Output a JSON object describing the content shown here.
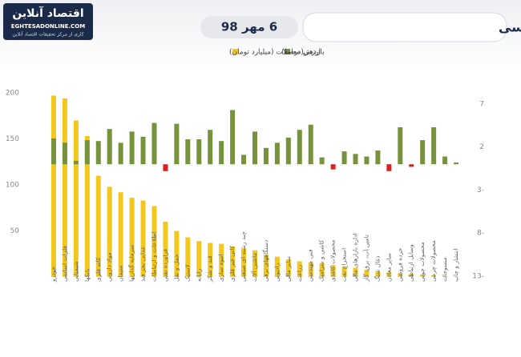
{
  "logo": {
    "name": "اقتصاد آنلاین",
    "site": "EGHTESADONLINE.COM",
    "tagline": "کاری از مرکز تحقیقات اقتصاد آنلاین"
  },
  "chart_data": {
    "type": "bar",
    "title": "بازدهی و ارزش معاملات صنایع بورسی",
    "date": "6 مهر 98",
    "categories": [
      "خودرو",
      "فلزات اساسی",
      "شیمیایی",
      "بانکها",
      "کانه فلزی",
      "مواد دارویی",
      "سیمان",
      "سرمایه گذاریها",
      "غذایی بجز قند",
      "اطلاعات و ارتباطات",
      "فراورده نفتی",
      "حمل و نقل",
      "لاستیک",
      "رایانه",
      "قند و شکر",
      "انبوه سازی",
      "کانی غیر فلزی",
      "چند رشته ای صنعتی",
      "ماشین آلات",
      "دستگاههای برقی",
      "رادیویی",
      "سایر مالی",
      "زراعت",
      "فنی مهندسی",
      "کاشی و سرامیک",
      "محصولات کاغذی",
      "استخراج نفت",
      "اداره بازارهای مالی",
      "تامین آب، برق، گاز",
      "ذغال سنگ",
      "سایر معادن",
      "خرده فروشی",
      "وسایل ارتباطی",
      "محصولات چوبی",
      "محصولات چرمی",
      "منسوجات",
      "انتشار و چاپ"
    ],
    "series": [
      {
        "name": "ارزش معاملات (میلیارد تومان)",
        "color": "#f2c81e",
        "axis": "y",
        "values": [
          197,
          194,
          170,
          153,
          110,
          98,
          92,
          86,
          83,
          77,
          60,
          50,
          43,
          39,
          37,
          36,
          33,
          31,
          29,
          24,
          22,
          19,
          17,
          16,
          15,
          13,
          11,
          10,
          8,
          6,
          5,
          4,
          3.5,
          2.6,
          2,
          1,
          0.5
        ]
      },
      {
        "name": "بازدهی(درصد)",
        "color": "#76923c",
        "negative_color": "#e0201e",
        "axis": "y2",
        "values": [
          3.0,
          2.5,
          0.4,
          2.8,
          2.7,
          4.1,
          2.5,
          3.8,
          3.2,
          4.8,
          -0.8,
          4.7,
          2.9,
          2.9,
          4.0,
          2.7,
          6.3,
          1.1,
          3.8,
          1.9,
          2.5,
          3.1,
          4.0,
          4.6,
          0.8,
          -0.6,
          1.5,
          1.2,
          0.9,
          1.6,
          -0.8,
          4.3,
          -0.3,
          2.8,
          4.3,
          0.9,
          0.2
        ]
      }
    ],
    "ylim": [
      0,
      200
    ],
    "yticks": [
      50,
      100,
      150,
      200
    ],
    "y2lim": [
      -13.1,
      8.3
    ],
    "y2ticks": [
      7,
      2,
      {
        "value": -3,
        "label": "3-"
      },
      {
        "value": -8,
        "label": "8-"
      },
      {
        "value": -13,
        "label": "13-"
      }
    ],
    "grid": false
  }
}
